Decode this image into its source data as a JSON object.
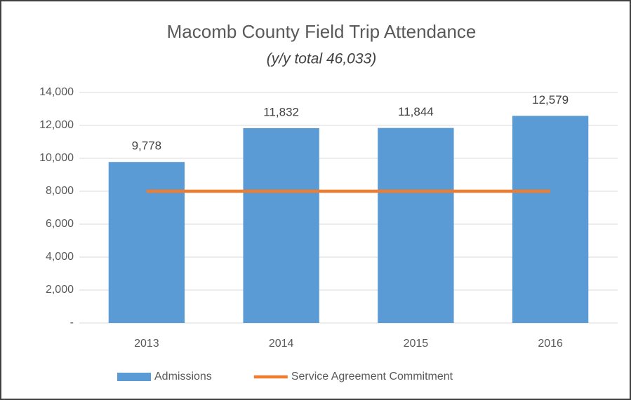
{
  "chart_data": {
    "type": "bar",
    "title": "Macomb County Field Trip Attendance",
    "subtitle": "(y/y total 46,033)",
    "categories": [
      "2013",
      "2014",
      "2015",
      "2016"
    ],
    "series": [
      {
        "name": "Admissions",
        "type": "bar",
        "color": "#5b9bd5",
        "values": [
          9778,
          11832,
          11844,
          12579
        ],
        "value_labels": [
          "9,778",
          "11,832",
          "11,844",
          "12,579"
        ]
      },
      {
        "name": "Service Agreement Commitment",
        "type": "line",
        "color": "#ed7d31",
        "values": [
          8000,
          8000,
          8000,
          8000
        ]
      }
    ],
    "ylim": [
      0,
      14000
    ],
    "yticks": [
      {
        "value": 0,
        "label": "-"
      },
      {
        "value": 2000,
        "label": "2,000"
      },
      {
        "value": 4000,
        "label": "4,000"
      },
      {
        "value": 6000,
        "label": "6,000"
      },
      {
        "value": 8000,
        "label": "8,000"
      },
      {
        "value": 10000,
        "label": "10,000"
      },
      {
        "value": 12000,
        "label": "12,000"
      },
      {
        "value": 14000,
        "label": "14,000"
      }
    ],
    "grid": true,
    "legend": "bottom"
  }
}
